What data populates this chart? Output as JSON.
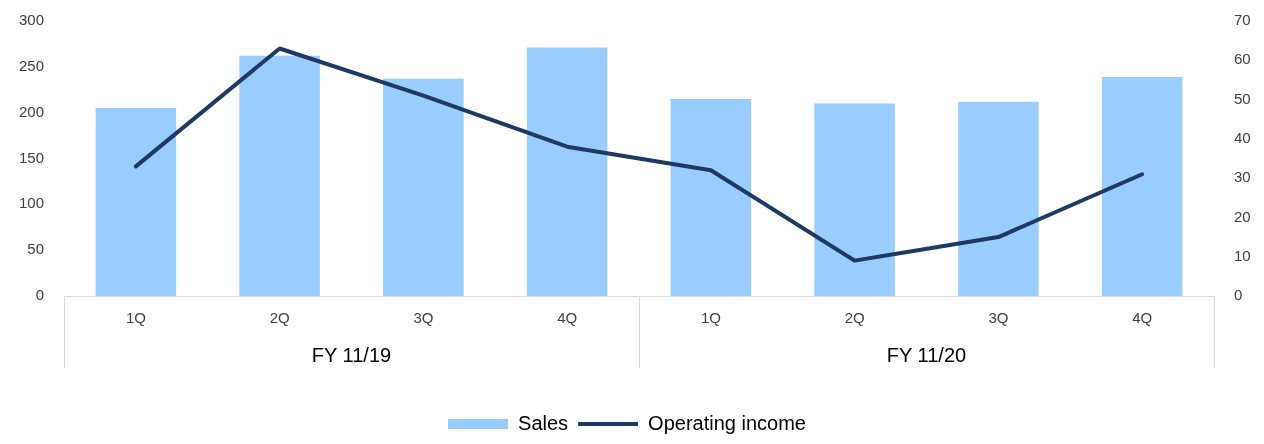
{
  "chart_data": {
    "type": "bar",
    "categories": [
      "1Q",
      "2Q",
      "3Q",
      "4Q",
      "1Q",
      "2Q",
      "3Q",
      "4Q"
    ],
    "series": [
      {
        "name": "Sales",
        "color": "#99ccff",
        "values": [
          205,
          262,
          237,
          271,
          215,
          210,
          212,
          239
        ]
      },
      {
        "name": "Operating income",
        "type": "line",
        "axis": "y2",
        "color": "#1f3864",
        "values": [
          33,
          63,
          51,
          38,
          32,
          9,
          15,
          31
        ]
      }
    ],
    "annotations": [
      "FY 11/19",
      "FY 11/20"
    ],
    "ylim": [
      0,
      300
    ],
    "yticks": [
      0,
      50,
      100,
      150,
      200,
      250,
      300
    ],
    "y2lim": [
      0,
      70
    ],
    "y2ticks": [
      0,
      10,
      20,
      30,
      40,
      50,
      60,
      70
    ],
    "grid": false,
    "legend": "bottom",
    "marker": "none",
    "line_style": "solid"
  }
}
